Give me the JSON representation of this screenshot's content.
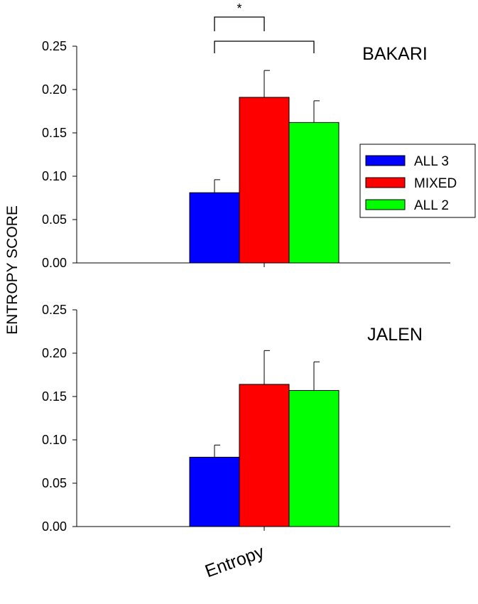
{
  "chart_data": {
    "type": "bar",
    "ylabel": "ENTROPY SCORE",
    "categories": [
      "Entropy"
    ],
    "ylim": [
      0,
      0.25
    ],
    "yticks": [
      "0.00",
      "0.05",
      "0.10",
      "0.15",
      "0.20",
      "0.25"
    ],
    "legend": {
      "placement": "right",
      "entries": [
        {
          "label": "ALL 3",
          "color": "#0000ff"
        },
        {
          "label": "MIXED",
          "color": "#ff0000"
        },
        {
          "label": "ALL 2",
          "color": "#00ff00"
        }
      ]
    },
    "panels": [
      {
        "title": "BAKARI",
        "series": [
          {
            "name": "ALL 3",
            "values": [
              0.081
            ],
            "error": [
              0.015
            ]
          },
          {
            "name": "MIXED",
            "values": [
              0.191
            ],
            "error": [
              0.031
            ]
          },
          {
            "name": "ALL 2",
            "values": [
              0.162
            ],
            "error": [
              0.025
            ]
          }
        ],
        "significance": [
          {
            "from": "ALL 3",
            "to": "MIXED",
            "label": "*"
          },
          {
            "from": "ALL 3",
            "to": "ALL 2",
            "label": ""
          }
        ]
      },
      {
        "title": "JALEN",
        "series": [
          {
            "name": "ALL 3",
            "values": [
              0.08
            ],
            "error": [
              0.014
            ]
          },
          {
            "name": "MIXED",
            "values": [
              0.164
            ],
            "error": [
              0.039
            ]
          },
          {
            "name": "ALL 2",
            "values": [
              0.157
            ],
            "error": [
              0.033
            ]
          }
        ],
        "significance": []
      }
    ]
  }
}
